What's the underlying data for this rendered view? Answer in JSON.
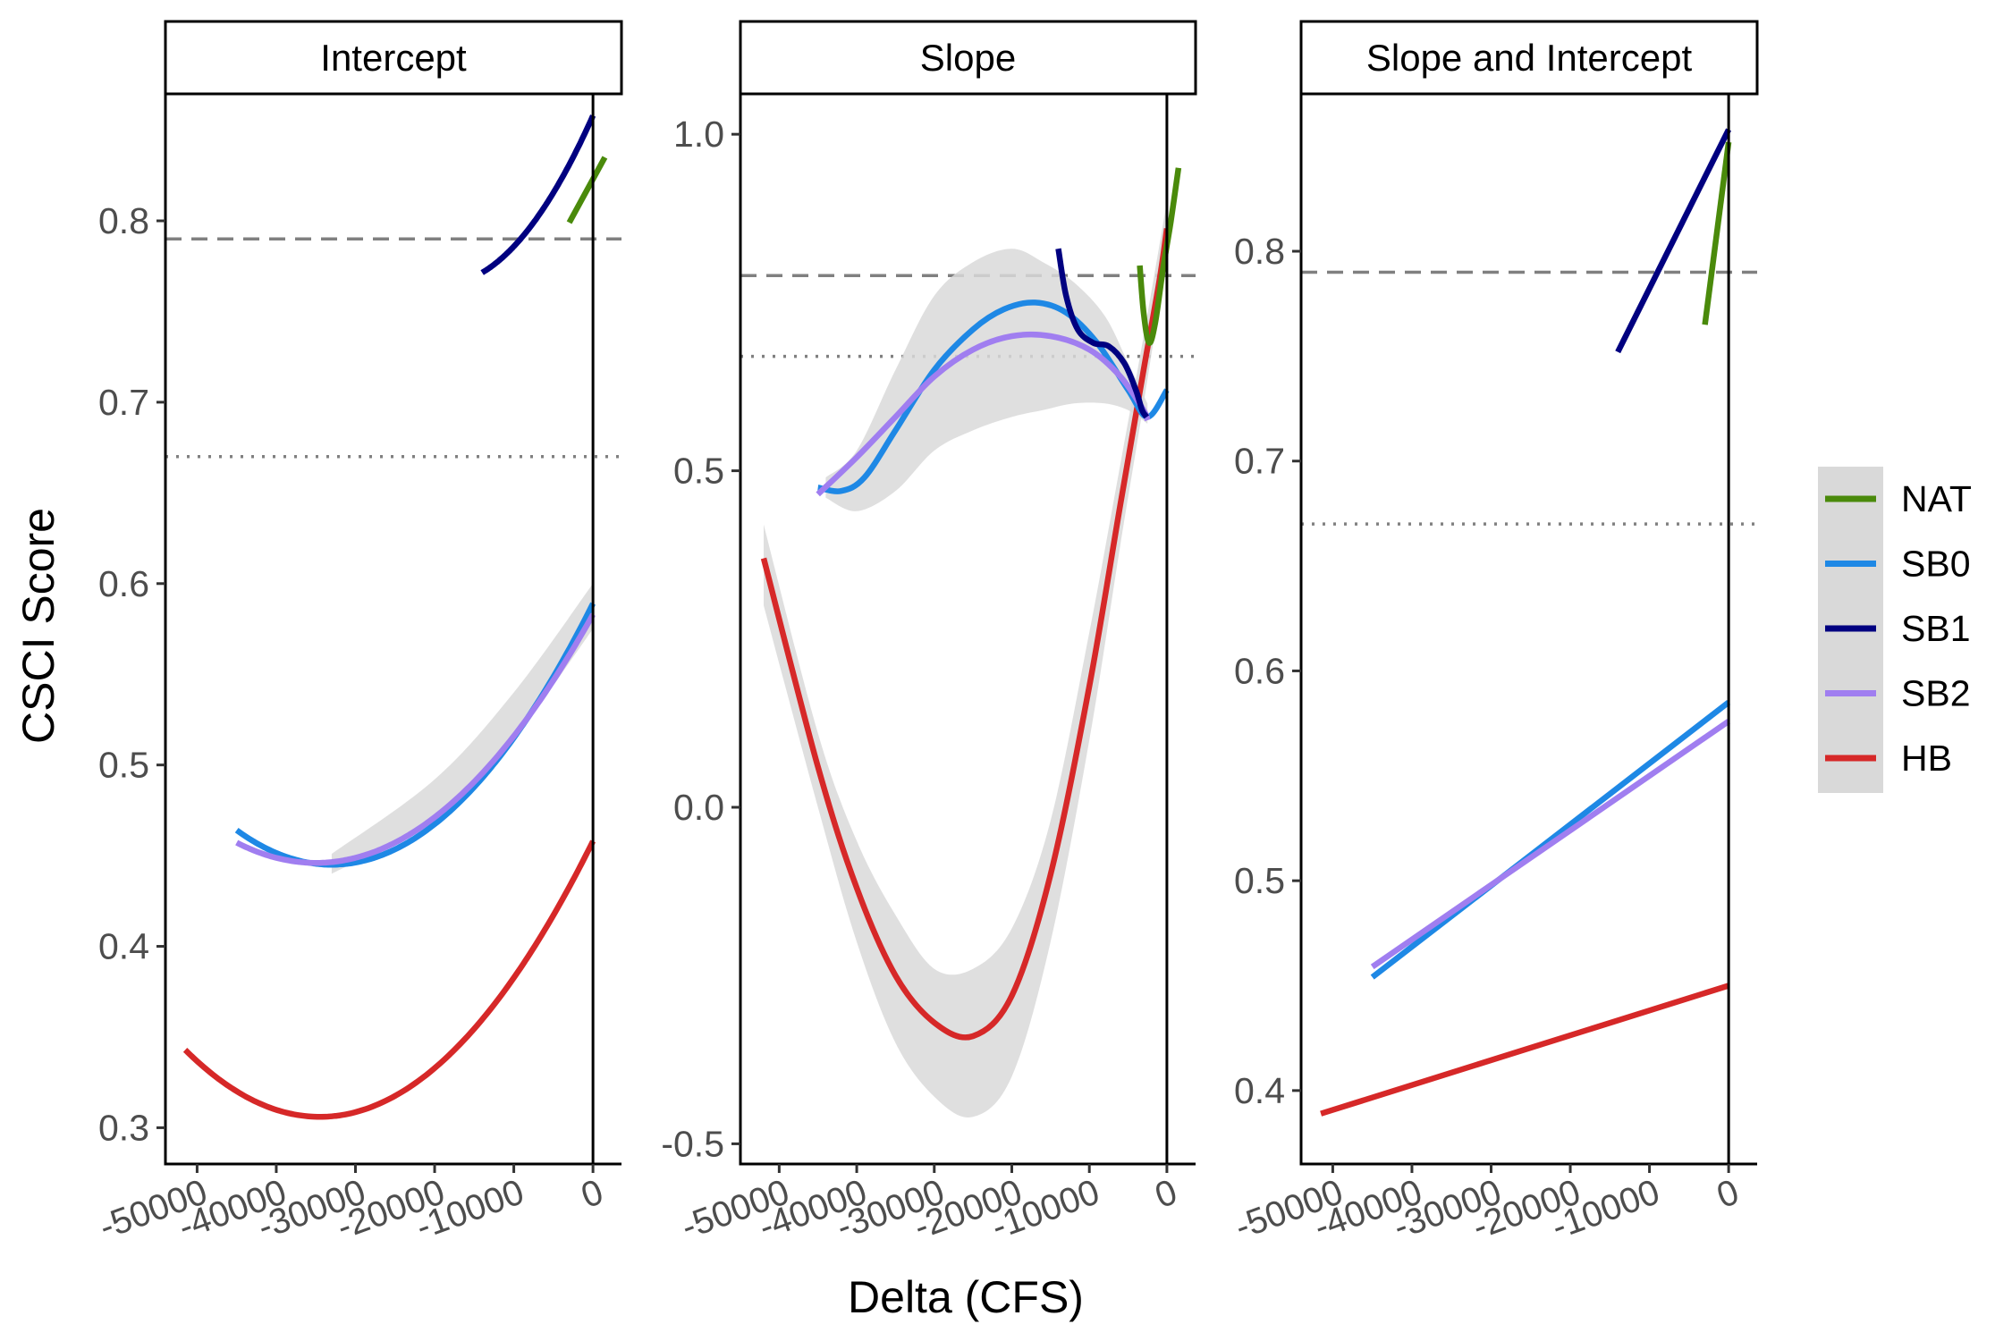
{
  "figure": {
    "xlabel": "Delta (CFS)",
    "ylabel": "CSCI Score"
  },
  "colors": {
    "NAT": "#4a8a0b",
    "SB0": "#1e88e5",
    "SB1": "#000080",
    "SB2": "#a07ef0",
    "HB": "#d62828",
    "ribbon": "#d9d9d9",
    "refline": "#808080"
  },
  "legend": {
    "placement": "right",
    "items": [
      {
        "key": "NAT",
        "label": "NAT"
      },
      {
        "key": "SB0",
        "label": "SB0"
      },
      {
        "key": "SB1",
        "label": "SB1"
      },
      {
        "key": "SB2",
        "label": "SB2"
      },
      {
        "key": "HB",
        "label": "HB"
      }
    ]
  },
  "chart_data": [
    {
      "type": "line",
      "title": "Intercept",
      "xlim": [
        -54000,
        3600
      ],
      "ylim": [
        0.28,
        0.87
      ],
      "xticks": [
        -50000,
        -40000,
        -30000,
        -20000,
        -10000,
        0
      ],
      "xtick_labels": [
        "-50000",
        "-40000",
        "-30000",
        "-20000",
        "-10000",
        "0"
      ],
      "yticks": [
        0.3,
        0.4,
        0.5,
        0.6,
        0.7,
        0.8
      ],
      "ytick_labels": [
        "0.3",
        "0.4",
        "0.5",
        "0.6",
        "0.7",
        "0.8"
      ],
      "reference_lines": [
        {
          "y": 0.79,
          "style": "dashed"
        },
        {
          "y": 0.67,
          "style": "dotted"
        }
      ],
      "vertical_line_x": 0,
      "series": [
        {
          "key": "SB0",
          "kind": "quadratic",
          "x_range": [
            -45000,
            0
          ],
          "vertex": [
            -33000,
            0.445
          ],
          "end_y": 0.589,
          "ribbon": [
            [
              -33000,
              0.44,
              0.451
            ],
            [
              -20000,
              0.47,
              0.492
            ],
            [
              -10000,
              0.515,
              0.54
            ],
            [
              0,
              0.575,
              0.6
            ]
          ]
        },
        {
          "key": "SB2",
          "kind": "quadratic",
          "x_range": [
            -45000,
            0
          ],
          "vertex": [
            -35000,
            0.446
          ],
          "end_y": 0.583
        },
        {
          "key": "SB1",
          "kind": "quadratic",
          "x_range": [
            -14000,
            0
          ],
          "vertex": [
            -19000,
            0.765
          ],
          "end_y": 0.858
        },
        {
          "key": "NAT",
          "kind": "linear",
          "points": [
            [
              -3000,
              0.799
            ],
            [
              1500,
              0.835
            ]
          ]
        },
        {
          "key": "HB",
          "kind": "quadratic",
          "x_range": [
            -51500,
            0
          ],
          "vertex": [
            -34500,
            0.306
          ],
          "end_y": 0.458
        }
      ]
    },
    {
      "type": "line",
      "title": "Slope",
      "xlim": [
        -55000,
        3700
      ],
      "ylim": [
        -0.53,
        1.06
      ],
      "xticks": [
        -50000,
        -40000,
        -30000,
        -20000,
        -10000,
        0
      ],
      "xtick_labels": [
        "-50000",
        "-40000",
        "-30000",
        "-20000",
        "-10000",
        "0"
      ],
      "yticks": [
        -0.5,
        0.0,
        0.5,
        1.0
      ],
      "ytick_labels": [
        "-0.5",
        "0.0",
        "0.5",
        "1.0"
      ],
      "reference_lines": [
        {
          "y": 0.79,
          "style": "dashed"
        },
        {
          "y": 0.67,
          "style": "dotted"
        }
      ],
      "vertical_line_x": 0,
      "series": [
        {
          "key": "HB",
          "points": [
            [
              -52000,
              0.37
            ],
            [
              -45000,
              0.06
            ],
            [
              -40000,
              -0.12
            ],
            [
              -35000,
              -0.25
            ],
            [
              -30000,
              -0.32
            ],
            [
              -25000,
              -0.34
            ],
            [
              -20000,
              -0.28
            ],
            [
              -15000,
              -0.1
            ],
            [
              -10000,
              0.18
            ],
            [
              -6000,
              0.45
            ],
            [
              -3000,
              0.65
            ],
            [
              -1000,
              0.78
            ],
            [
              0,
              0.86
            ]
          ],
          "ribbon": [
            [
              -52000,
              0.3,
              0.42
            ],
            [
              -45000,
              0.0,
              0.11
            ],
            [
              -40000,
              -0.2,
              -0.05
            ],
            [
              -35000,
              -0.35,
              -0.16
            ],
            [
              -30000,
              -0.43,
              -0.24
            ],
            [
              -25000,
              -0.46,
              -0.24
            ],
            [
              -20000,
              -0.4,
              -0.18
            ],
            [
              -15000,
              -0.2,
              -0.02
            ],
            [
              -10000,
              0.1,
              0.26
            ],
            [
              -6000,
              0.39,
              0.51
            ],
            [
              -3000,
              0.6,
              0.7
            ],
            [
              0,
              0.82,
              0.9
            ]
          ]
        },
        {
          "key": "SB0",
          "points": [
            [
              -45000,
              0.475
            ],
            [
              -42000,
              0.47
            ],
            [
              -39000,
              0.49
            ],
            [
              -35000,
              0.56
            ],
            [
              -30000,
              0.65
            ],
            [
              -25000,
              0.71
            ],
            [
              -21000,
              0.74
            ],
            [
              -17000,
              0.75
            ],
            [
              -13000,
              0.735
            ],
            [
              -9000,
              0.69
            ],
            [
              -5000,
              0.62
            ],
            [
              -2500,
              0.58
            ],
            [
              0,
              0.62
            ]
          ],
          "ribbon": [
            [
              -44000,
              0.46,
              0.49
            ],
            [
              -40000,
              0.44,
              0.53
            ],
            [
              -35000,
              0.47,
              0.65
            ],
            [
              -30000,
              0.53,
              0.76
            ],
            [
              -25000,
              0.56,
              0.81
            ],
            [
              -20000,
              0.58,
              0.83
            ],
            [
              -16000,
              0.59,
              0.81
            ],
            [
              -12000,
              0.6,
              0.78
            ],
            [
              -8000,
              0.6,
              0.73
            ],
            [
              -5000,
              0.59,
              0.66
            ],
            [
              -2500,
              0.57,
              0.6
            ]
          ]
        },
        {
          "key": "SB2",
          "points": [
            [
              -45000,
              0.465
            ],
            [
              -40000,
              0.52
            ],
            [
              -35000,
              0.58
            ],
            [
              -30000,
              0.64
            ],
            [
              -25000,
              0.68
            ],
            [
              -20000,
              0.7
            ],
            [
              -15000,
              0.7
            ],
            [
              -10000,
              0.68
            ],
            [
              -6000,
              0.64
            ],
            [
              -3000,
              0.59
            ],
            [
              -2500,
              0.575
            ]
          ]
        },
        {
          "key": "SB1",
          "points": [
            [
              -14000,
              0.83
            ],
            [
              -13000,
              0.76
            ],
            [
              -11500,
              0.71
            ],
            [
              -9500,
              0.69
            ],
            [
              -7500,
              0.685
            ],
            [
              -5500,
              0.66
            ],
            [
              -4000,
              0.62
            ],
            [
              -3200,
              0.59
            ],
            [
              -2600,
              0.58
            ]
          ]
        },
        {
          "key": "NAT",
          "points": [
            [
              -3500,
              0.805
            ],
            [
              -3000,
              0.735
            ],
            [
              -2300,
              0.69
            ],
            [
              -1500,
              0.72
            ],
            [
              -500,
              0.8
            ],
            [
              500,
              0.87
            ],
            [
              1500,
              0.95
            ]
          ]
        }
      ]
    },
    {
      "type": "line",
      "title": "Slope and Intercept",
      "xlim": [
        -54000,
        3600
      ],
      "ylim": [
        0.365,
        0.875
      ],
      "xticks": [
        -50000,
        -40000,
        -30000,
        -20000,
        -10000,
        0
      ],
      "xtick_labels": [
        "-50000",
        "-40000",
        "-30000",
        "-20000",
        "-10000",
        "0"
      ],
      "yticks": [
        0.4,
        0.5,
        0.6,
        0.7,
        0.8
      ],
      "ytick_labels": [
        "0.4",
        "0.5",
        "0.6",
        "0.7",
        "0.8"
      ],
      "reference_lines": [
        {
          "y": 0.79,
          "style": "dashed"
        },
        {
          "y": 0.67,
          "style": "dotted"
        }
      ],
      "vertical_line_x": 0,
      "series": [
        {
          "key": "SB0",
          "kind": "linear",
          "points": [
            [
              -45000,
              0.454
            ],
            [
              0,
              0.585
            ]
          ]
        },
        {
          "key": "SB2",
          "kind": "linear",
          "points": [
            [
              -45000,
              0.459
            ],
            [
              0,
              0.576
            ]
          ]
        },
        {
          "key": "SB1",
          "kind": "linear",
          "points": [
            [
              -14000,
              0.752
            ],
            [
              0,
              0.858
            ]
          ]
        },
        {
          "key": "NAT",
          "kind": "linear",
          "points": [
            [
              -3000,
              0.765
            ],
            [
              0,
              0.852
            ]
          ]
        },
        {
          "key": "HB",
          "kind": "linear",
          "points": [
            [
              -51500,
              0.389
            ],
            [
              0,
              0.45
            ]
          ]
        }
      ]
    }
  ]
}
